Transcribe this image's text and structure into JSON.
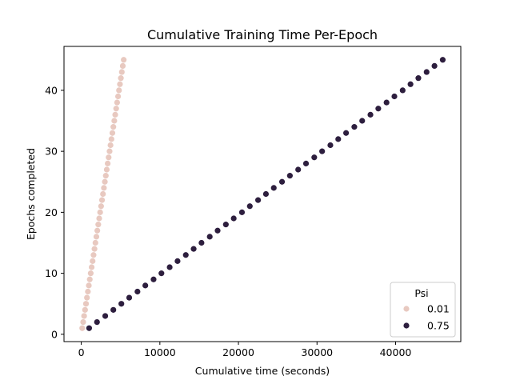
{
  "chart_data": {
    "type": "scatter",
    "title": "Cumulative Training Time Per-Epoch",
    "xlabel": "Cumulative time (seconds)",
    "ylabel": "Epochs completed",
    "xlim": [
      -2200,
      48300
    ],
    "ylim": [
      -1.2,
      47.2
    ],
    "xticks": [
      0,
      10000,
      20000,
      30000,
      40000
    ],
    "xtick_labels": [
      "0",
      "10000",
      "20000",
      "30000",
      "40000"
    ],
    "yticks": [
      0,
      10,
      20,
      30,
      40
    ],
    "ytick_labels": [
      "0",
      "10",
      "20",
      "30",
      "40"
    ],
    "grid": false,
    "legend": {
      "title": "Psi",
      "placement": "lower-right",
      "entries": [
        "0.01",
        "0.75"
      ]
    },
    "series": [
      {
        "name": "0.01",
        "color": "#e8c9c0",
        "x": [
          120,
          240,
          360,
          480,
          600,
          720,
          840,
          960,
          1080,
          1200,
          1320,
          1440,
          1560,
          1680,
          1800,
          1920,
          2040,
          2160,
          2280,
          2400,
          2520,
          2640,
          2760,
          2880,
          3000,
          3120,
          3240,
          3360,
          3480,
          3600,
          3720,
          3840,
          3960,
          4080,
          4200,
          4320,
          4440,
          4560,
          4680,
          4800,
          4920,
          5040,
          5160,
          5280,
          5400
        ],
        "y": [
          1,
          2,
          3,
          4,
          5,
          6,
          7,
          8,
          9,
          10,
          11,
          12,
          13,
          14,
          15,
          16,
          17,
          18,
          19,
          20,
          21,
          22,
          23,
          24,
          25,
          26,
          27,
          28,
          29,
          30,
          31,
          32,
          33,
          34,
          35,
          36,
          37,
          38,
          39,
          40,
          41,
          42,
          43,
          44,
          45
        ]
      },
      {
        "name": "0.75",
        "color": "#2d1e3e",
        "x": [
          1000,
          2000,
          3050,
          4080,
          5100,
          6100,
          7150,
          8150,
          9200,
          10200,
          11250,
          12250,
          13300,
          14300,
          15300,
          16350,
          17350,
          18400,
          19400,
          20450,
          21450,
          22500,
          23500,
          24500,
          25550,
          26550,
          27600,
          28600,
          29650,
          30650,
          31700,
          32700,
          33700,
          34750,
          35750,
          36800,
          37800,
          38850,
          39850,
          40900,
          41900,
          42900,
          43950,
          44950,
          46000
        ],
        "y": [
          1,
          2,
          3,
          4,
          5,
          6,
          7,
          8,
          9,
          10,
          11,
          12,
          13,
          14,
          15,
          16,
          17,
          18,
          19,
          20,
          21,
          22,
          23,
          24,
          25,
          26,
          27,
          28,
          29,
          30,
          31,
          32,
          33,
          34,
          35,
          36,
          37,
          38,
          39,
          40,
          41,
          42,
          43,
          44,
          45
        ]
      }
    ]
  }
}
